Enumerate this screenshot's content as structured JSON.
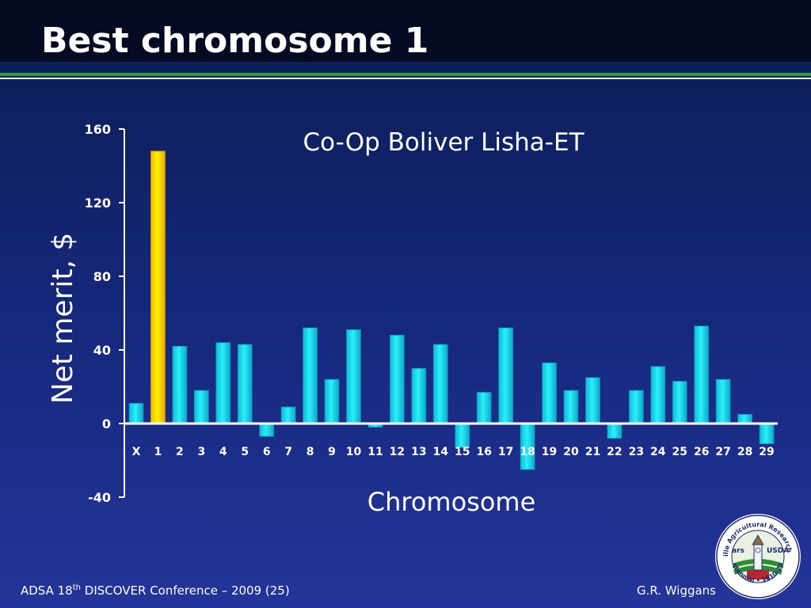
{
  "slide": {
    "title": "Best chromosome 1",
    "footer_left_prefix": "ADSA 18",
    "footer_left_sup": "th",
    "footer_left_suffix": " DISCOVER Conference – 2009 (25)",
    "footer_right": "G.R. Wiggans"
  },
  "logo": {
    "ring_top": "Beltsville Agricultural Research Center",
    "ring_bottom": "Centennial • 1910-2010",
    "agency": "USDA",
    "mark": "ars"
  },
  "colors": {
    "highlight_bar": "#ffe600",
    "bar": "#19e3f0",
    "accent_green": "#2e9b3a"
  },
  "chart_data": {
    "type": "bar",
    "title": "Co-Op Boliver Lisha-ET",
    "xlabel": "Chromosome",
    "ylabel": "Net merit, $",
    "ylim": [
      -40,
      160
    ],
    "yticks": [
      160,
      120,
      80,
      40,
      0,
      -40
    ],
    "grid": false,
    "legend": "none",
    "highlight_category": "1",
    "categories": [
      "X",
      "1",
      "2",
      "3",
      "4",
      "5",
      "6",
      "7",
      "8",
      "9",
      "10",
      "11",
      "12",
      "13",
      "14",
      "15",
      "16",
      "17",
      "18",
      "19",
      "20",
      "21",
      "22",
      "23",
      "24",
      "25",
      "26",
      "27",
      "28",
      "29"
    ],
    "values": [
      11,
      148,
      42,
      18,
      44,
      43,
      -7,
      9,
      52,
      24,
      51,
      -2,
      48,
      30,
      43,
      -13,
      17,
      52,
      -25,
      33,
      18,
      25,
      -8,
      18,
      31,
      23,
      53,
      24,
      5,
      -11
    ]
  }
}
